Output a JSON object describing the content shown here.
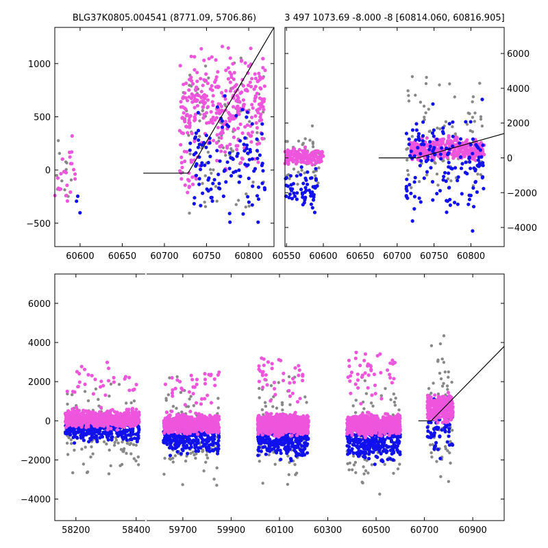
{
  "chart_data": [
    {
      "id": "top_left",
      "type": "scatter",
      "title": "BLG37K0805.004541 (8771.09, 5706.86)",
      "xlim": [
        60570,
        60830
      ],
      "ylim": [
        -720,
        1340
      ],
      "xticks": [
        60600,
        60650,
        60700,
        60750,
        60800
      ],
      "yticks": [
        -500,
        0,
        500,
        1000
      ],
      "y_axis_side": "left",
      "model_line": [
        [
          60675,
          -30
        ],
        [
          60728,
          -30
        ],
        [
          60830,
          1340
        ]
      ],
      "series": [
        {
          "color": "#888888",
          "size": 2.2,
          "clusters": [
            {
              "x": [
                60570,
                60590
              ],
              "y": [
                -600,
                450
              ],
              "n": 14
            },
            {
              "x": [
                60720,
                60820
              ],
              "y": [
                -650,
                1300
              ],
              "n": 90
            }
          ]
        },
        {
          "color": "#ee55dd",
          "size": 2.6,
          "clusters": [
            {
              "x": [
                60570,
                60595
              ],
              "y": [
                -550,
                520
              ],
              "n": 22
            },
            {
              "x": [
                60718,
                60820
              ],
              "y": [
                -100,
                1300
              ],
              "n": 330
            },
            {
              "x": [
                60718,
                60740
              ],
              "y": [
                -350,
                250
              ],
              "n": 20
            }
          ]
        },
        {
          "color": "#1111ee",
          "size": 2.6,
          "clusters": [
            {
              "x": [
                60595,
                60600
              ],
              "y": [
                -500,
                -200
              ],
              "n": 3
            },
            {
              "x": [
                60730,
                60820
              ],
              "y": [
                -700,
                800
              ],
              "n": 120
            }
          ]
        }
      ]
    },
    {
      "id": "top_right",
      "type": "scatter",
      "title": "3 497 1073.69 -8.000 -8 [60814.060, 60816.905]",
      "xlim": [
        60548,
        60845
      ],
      "ylim": [
        -5100,
        7500
      ],
      "xticks": [
        60550,
        60600,
        60650,
        60700,
        60750,
        60800
      ],
      "yticks": [
        -4000,
        -2000,
        0,
        2000,
        4000,
        6000
      ],
      "y_axis_side": "right",
      "model_line": [
        [
          60675,
          0
        ],
        [
          60728,
          0
        ],
        [
          60845,
          1400
        ]
      ],
      "series": [
        {
          "color": "#888888",
          "size": 2.2,
          "clusters": [
            {
              "x": [
                60548,
                60595
              ],
              "y": [
                -3000,
                2500
              ],
              "n": 40
            },
            {
              "x": [
                60712,
                60818
              ],
              "y": [
                -4500,
                6000
              ],
              "n": 90
            }
          ]
        },
        {
          "color": "#ee55dd",
          "size": 2.6,
          "clusters": [
            {
              "x": [
                60548,
                60600
              ],
              "y": [
                -600,
                700
              ],
              "n": 150
            },
            {
              "x": [
                60718,
                60818
              ],
              "y": [
                -400,
                1400
              ],
              "n": 380
            }
          ]
        },
        {
          "color": "#1111ee",
          "size": 2.6,
          "clusters": [
            {
              "x": [
                60548,
                60595
              ],
              "y": [
                -3500,
                -200
              ],
              "n": 60
            },
            {
              "x": [
                60712,
                60818
              ],
              "y": [
                -4800,
                4200
              ],
              "n": 150
            }
          ]
        }
      ]
    },
    {
      "id": "bottom",
      "type": "scatter",
      "title": "",
      "segments": [
        {
          "xlim": [
            58130,
            58430
          ],
          "xticks": [
            58200,
            58400
          ]
        },
        {
          "xlim": [
            59550,
            61030
          ],
          "xticks": [
            59700,
            59900,
            60100,
            60300,
            60500,
            60700,
            60900
          ]
        }
      ],
      "ylim": [
        -5100,
        7500
      ],
      "yticks": [
        -4000,
        -2000,
        0,
        2000,
        4000,
        6000
      ],
      "y_axis_side": "left",
      "model_line": [
        [
          60675,
          0
        ],
        [
          60728,
          0
        ],
        [
          61030,
          3800
        ]
      ],
      "series": [
        {
          "color": "#888888",
          "size": 2.2,
          "clusters": [
            {
              "x": [
                58165,
                58410
              ],
              "y": [
                -3500,
                2500
              ],
              "n": 120
            },
            {
              "x": [
                59620,
                59850
              ],
              "y": [
                -4200,
                3000
              ],
              "n": 110
            },
            {
              "x": [
                60010,
                60220
              ],
              "y": [
                -4200,
                3000
              ],
              "n": 110
            },
            {
              "x": [
                60380,
                60600
              ],
              "y": [
                -4200,
                3000
              ],
              "n": 110
            },
            {
              "x": [
                60712,
                60818
              ],
              "y": [
                -4500,
                5800
              ],
              "n": 70
            }
          ]
        },
        {
          "color": "#1111ee",
          "size": 2.6,
          "clusters": [
            {
              "x": [
                58165,
                58410
              ],
              "y": [
                -1300,
                300
              ],
              "n": 260
            },
            {
              "x": [
                59620,
                59850
              ],
              "y": [
                -2000,
                200
              ],
              "n": 260
            },
            {
              "x": [
                60010,
                60220
              ],
              "y": [
                -2200,
                200
              ],
              "n": 280
            },
            {
              "x": [
                60380,
                60600
              ],
              "y": [
                -2400,
                200
              ],
              "n": 300
            },
            {
              "x": [
                60712,
                60818
              ],
              "y": [
                -2500,
                2000
              ],
              "n": 70
            }
          ]
        },
        {
          "color": "#ee55dd",
          "size": 2.6,
          "clusters": [
            {
              "x": [
                58165,
                58410
              ],
              "y": [
                -500,
                700
              ],
              "n": 700
            },
            {
              "x": [
                59620,
                59850
              ],
              "y": [
                -800,
                500
              ],
              "n": 700
            },
            {
              "x": [
                60010,
                60220
              ],
              "y": [
                -900,
                500
              ],
              "n": 720
            },
            {
              "x": [
                60380,
                60600
              ],
              "y": [
                -900,
                500
              ],
              "n": 720
            },
            {
              "x": [
                60712,
                60818
              ],
              "y": [
                -300,
                1600
              ],
              "n": 300
            }
          ]
        },
        {
          "color": "#ee55dd",
          "size": 2.6,
          "clusters": [
            {
              "x": [
                58165,
                58410
              ],
              "y": [
                700,
                3200
              ],
              "n": 30
            },
            {
              "x": [
                59620,
                59850
              ],
              "y": [
                500,
                3000
              ],
              "n": 35
            },
            {
              "x": [
                60010,
                60220
              ],
              "y": [
                500,
                3800
              ],
              "n": 40
            },
            {
              "x": [
                60380,
                60600
              ],
              "y": [
                500,
                4500
              ],
              "n": 45
            }
          ]
        }
      ]
    }
  ]
}
